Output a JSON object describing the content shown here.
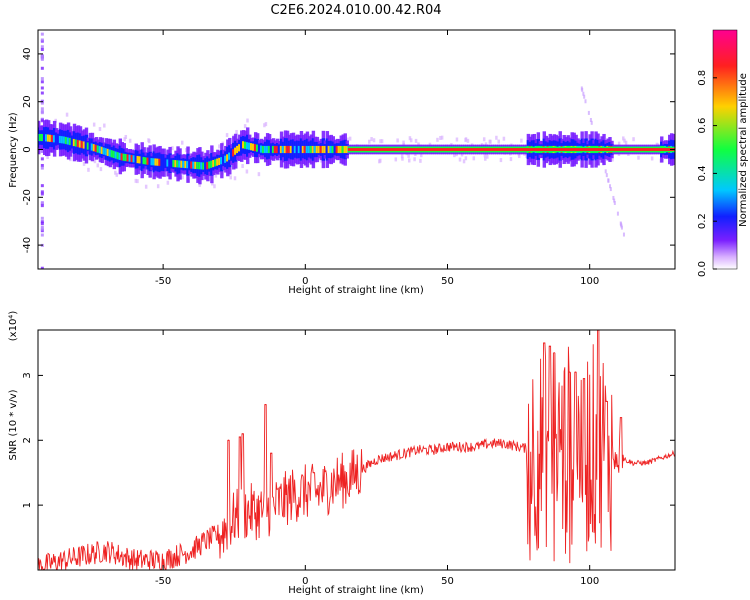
{
  "title": "C2E6.2024.010.00.42.R04",
  "colors": {
    "snr_line": "#ee2222",
    "frame": "#000000",
    "colormap": [
      "#ffffff",
      "#d9b0ff",
      "#7a20ff",
      "#1020ff",
      "#00c8ff",
      "#10ff40",
      "#ffd000",
      "#ff2020",
      "#ff0090"
    ]
  },
  "chart_data": [
    {
      "type": "heatmap",
      "name": "spectrogram",
      "xlabel": "Height of straight line (km)",
      "ylabel": "Frequency (Hz)",
      "xlim": [
        -94,
        130
      ],
      "ylim": [
        -50,
        50
      ],
      "xticks": [
        -50,
        0,
        50,
        100
      ],
      "yticks": [
        -40,
        -20,
        0,
        20,
        40
      ],
      "grid": false,
      "colorbar": {
        "label": "Normalized spectral amplitude",
        "range": [
          0,
          1
        ],
        "ticks": [
          "0.0",
          "0.2",
          "0.4",
          "0.6",
          "0.8"
        ]
      },
      "ridge_frequency_hz": {
        "x": [
          -92,
          -85,
          -75,
          -65,
          -55,
          -45,
          -35,
          -28,
          -22,
          -15,
          -10,
          0,
          10,
          20,
          40,
          60,
          75,
          80,
          85,
          90,
          95,
          100,
          105,
          110,
          120,
          130
        ],
        "y": [
          5,
          4,
          1,
          -3,
          -5,
          -6,
          -7,
          -4,
          2,
          0,
          0,
          0,
          0,
          0,
          0,
          0,
          0,
          0,
          0,
          0,
          0,
          0,
          0,
          0,
          0,
          0
        ]
      }
    },
    {
      "type": "line",
      "name": "snr",
      "xlabel": "Height of straight line (km)",
      "ylabel": "SNR (10 * v/v)",
      "y_multiplier_label": "(x10⁴)",
      "xlim": [
        -94,
        130
      ],
      "ylim": [
        0,
        3.7
      ],
      "xticks": [
        -50,
        0,
        50,
        100
      ],
      "yticks": [
        1,
        2,
        3
      ],
      "grid": false,
      "envelope": {
        "x": [
          -94,
          -80,
          -70,
          -60,
          -50,
          -40,
          -35,
          -30,
          -25,
          -20,
          -15,
          -10,
          -5,
          0,
          5,
          10,
          15,
          20,
          25,
          30,
          35,
          40,
          45,
          50,
          55,
          60,
          65,
          70,
          75,
          80,
          85,
          90,
          95,
          100,
          105,
          110,
          115,
          120,
          130
        ],
        "y": [
          0.05,
          0.2,
          0.3,
          0.15,
          0.15,
          0.3,
          0.45,
          0.55,
          0.8,
          0.9,
          0.9,
          1.0,
          1.15,
          1.2,
          1.2,
          1.35,
          1.4,
          1.55,
          1.7,
          1.75,
          1.8,
          1.85,
          1.85,
          1.9,
          1.9,
          1.9,
          1.95,
          1.95,
          1.9,
          1.85,
          1.9,
          1.9,
          1.95,
          1.9,
          1.95,
          1.75,
          1.65,
          1.65,
          1.8
        ]
      },
      "peaks": [
        {
          "x": -27,
          "y": 2.0
        },
        {
          "x": -23,
          "y": 2.05
        },
        {
          "x": -22,
          "y": 2.1
        },
        {
          "x": -14,
          "y": 2.55
        },
        {
          "x": -12,
          "y": 1.8
        },
        {
          "x": 3,
          "y": 1.5
        },
        {
          "x": 84,
          "y": 3.5
        },
        {
          "x": 86,
          "y": 3.45
        },
        {
          "x": 87.5,
          "y": 3.35
        },
        {
          "x": 93,
          "y": 3.05
        },
        {
          "x": 95,
          "y": 3.05
        },
        {
          "x": 98,
          "y": 2.95
        },
        {
          "x": 103,
          "y": 3.7
        },
        {
          "x": 106,
          "y": 2.6
        },
        {
          "x": 111,
          "y": 2.35
        }
      ]
    }
  ]
}
